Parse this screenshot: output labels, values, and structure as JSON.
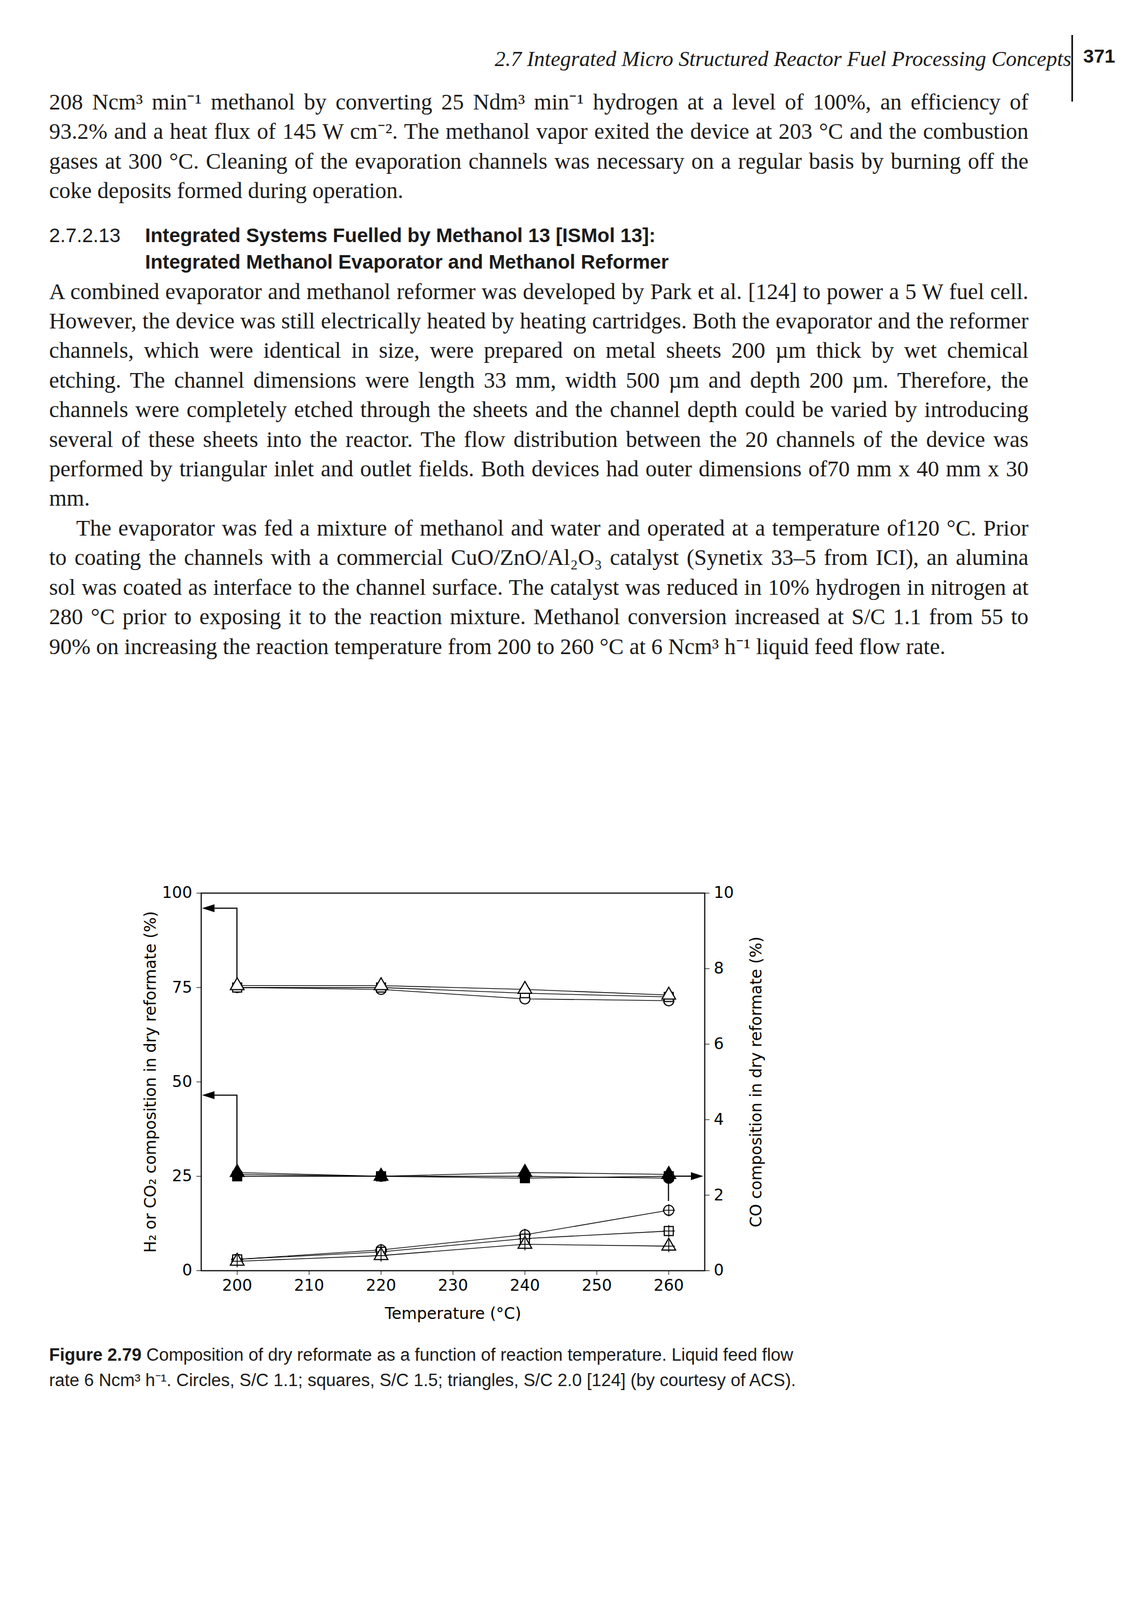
{
  "header": {
    "running_title": "2.7 Integrated Micro Structured Reactor Fuel Processing Concepts",
    "page_number": "371"
  },
  "paragraphs_before": [
    "208 Ncm³ min⁻¹ methanol by converting 25 Ndm³ min⁻¹ hydrogen at a level of 100%, an efficiency of 93.2% and a heat flux of 145 W cm⁻². The methanol vapor exited the device at 203 °C and the combustion gases at 300 °C. Cleaning of the evaporation channels was necessary on a regular basis by burning off the coke deposits formed during operation."
  ],
  "section": {
    "number": "2.7.2.13",
    "title_lines": [
      "Integrated Systems Fuelled by Methanol 13 [ISMol 13]:",
      "Integrated Methanol Evaporator and Methanol Reformer"
    ],
    "paragraphs": [
      "A combined evaporator and methanol reformer was developed by Park et al. [124] to power a 5 W fuel cell. However, the device was still electrically heated by heating cartridges. Both the evaporator and the reformer channels, which were identical in size, were prepared on metal sheets 200 µm thick by wet chemical etching. The channel dimensions were length 33 mm, width 500 µm and depth 200 µm. Therefore, the channels were completely etched through the sheets and the channel depth could be varied by introducing several of these sheets into the reactor. The flow distribution between the 20 channels of the device was performed by triangular inlet and outlet fields. Both devices had outer dimensions of70 mm x 40 mm x 30 mm.",
      "The evaporator was fed a mixture of methanol and water and operated at a temperature of120 °C. Prior to coating the channels with a commercial CuO/ZnO/Al₂O₃ catalyst (Synetix 33–5 from ICI), an alumina sol was coated as interface to the channel surface. The catalyst was reduced in 10% hydrogen in nitrogen at 280 °C prior to exposing it to the reaction mixture. Methanol conversion increased at S/C 1.1 from 55 to 90% on increasing the reaction temperature from 200 to 260 °C at 6 Ncm³ h⁻¹ liquid feed flow rate."
    ]
  },
  "chart_data": {
    "type": "line",
    "xlabel": "Temperature (°C)",
    "ylabel": "H₂ or CO₂ composition in dry reformate (%)",
    "y2label": "CO composition in dry reformate (%)",
    "x": [
      200,
      220,
      240,
      260
    ],
    "xlim": [
      195,
      265
    ],
    "xticks": [
      200,
      210,
      220,
      230,
      240,
      250,
      260
    ],
    "ylim": [
      0,
      100
    ],
    "yticks": [
      0,
      25,
      50,
      75,
      100
    ],
    "y2lim": [
      0,
      10
    ],
    "y2ticks": [
      0,
      2,
      4,
      6,
      8,
      10
    ],
    "grid": false,
    "series": [
      {
        "color": "#000000",
        "marker": "circle-open",
        "values": [
          75,
          74.5,
          72,
          71.5
        ]
      },
      {
        "color": "#000000",
        "marker": "square-open",
        "values": [
          75,
          75,
          73.5,
          72.5
        ]
      },
      {
        "color": "#000000",
        "marker": "triangle-open",
        "values": [
          75.5,
          75.5,
          74.5,
          73
        ]
      },
      {
        "color": "#000000",
        "marker": "circle-filled",
        "values": [
          25.5,
          25,
          25,
          24.5
        ]
      },
      {
        "color": "#000000",
        "marker": "square-filled",
        "values": [
          25,
          25,
          24.5,
          25
        ]
      },
      {
        "color": "#000000",
        "marker": "triangle-filled",
        "values": [
          26,
          25,
          26,
          25.5
        ]
      },
      {
        "color": "#000000",
        "marker": "circle-cross",
        "axis": "y2",
        "values": [
          0.3,
          0.55,
          0.95,
          1.6
        ]
      },
      {
        "color": "#000000",
        "marker": "square-cross",
        "axis": "y2",
        "values": [
          0.3,
          0.5,
          0.85,
          1.05
        ]
      },
      {
        "color": "#000000",
        "marker": "triangle-cross",
        "axis": "y2",
        "values": [
          0.25,
          0.4,
          0.7,
          0.65
        ]
      }
    ]
  },
  "caption": {
    "label": "Figure 2.79",
    "text": " Composition of dry reformate as a function of reaction temperature. Liquid feed flow rate 6 Ncm³ h⁻¹. Circles, S/C 1.1; squares, S/C 1.5; triangles, S/C 2.0 [124] (by courtesy of ACS)."
  }
}
